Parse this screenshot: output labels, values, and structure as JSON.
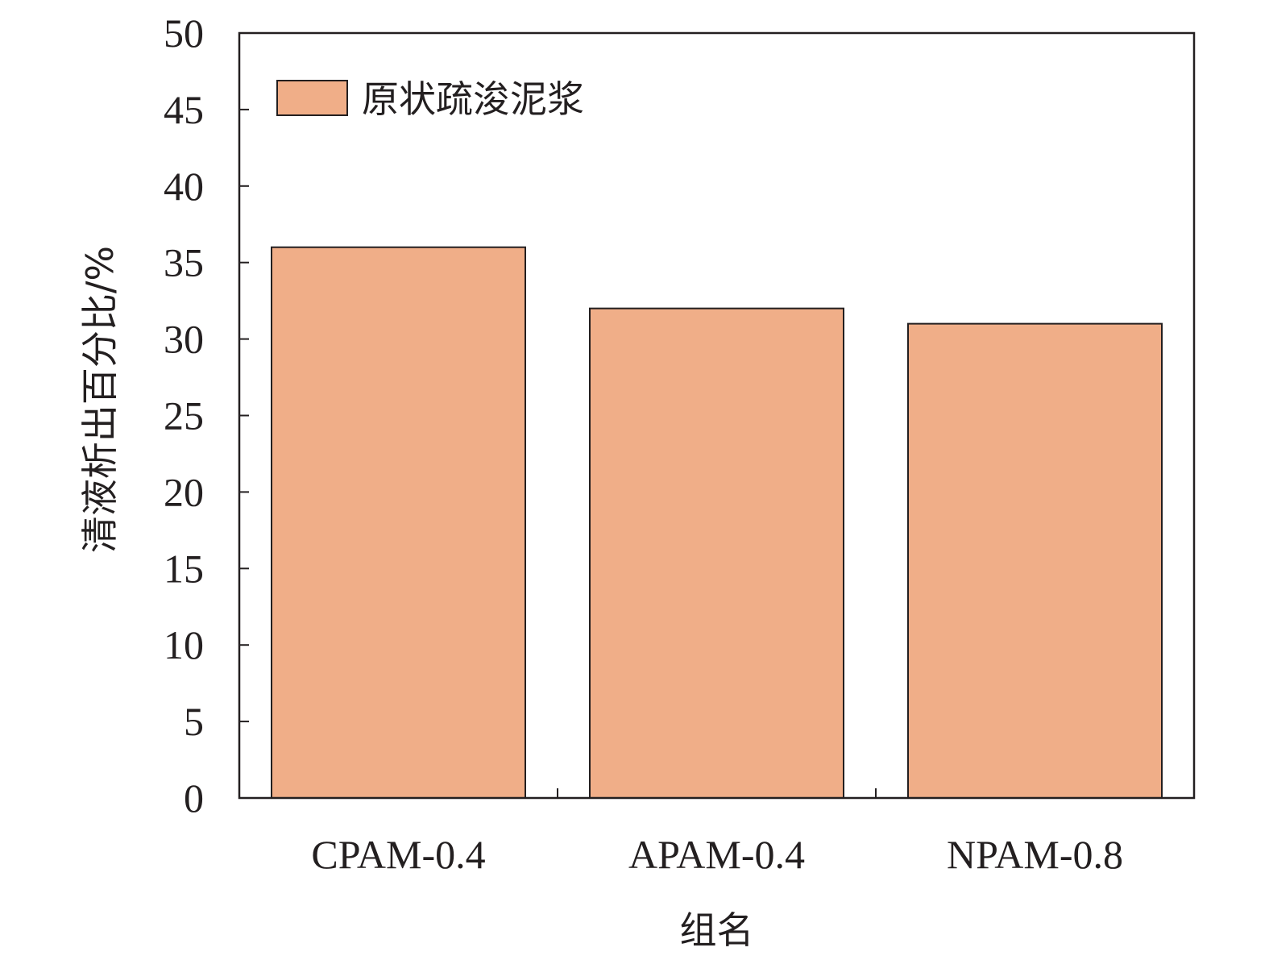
{
  "chart_data": {
    "type": "bar",
    "categories": [
      "CPAM-0.4",
      "APAM-0.4",
      "NPAM-0.8"
    ],
    "series": [
      {
        "name": "原状疏浚泥浆",
        "values": [
          36,
          32,
          31
        ],
        "color": "#f0ae88"
      }
    ],
    "xlabel": "组名",
    "ylabel": "清液析出百分比/%",
    "ylim": [
      0,
      50
    ],
    "yticks": [
      0,
      5,
      10,
      15,
      20,
      25,
      30,
      35,
      40,
      45,
      50
    ],
    "grid": false,
    "legend_position": "top-left"
  }
}
